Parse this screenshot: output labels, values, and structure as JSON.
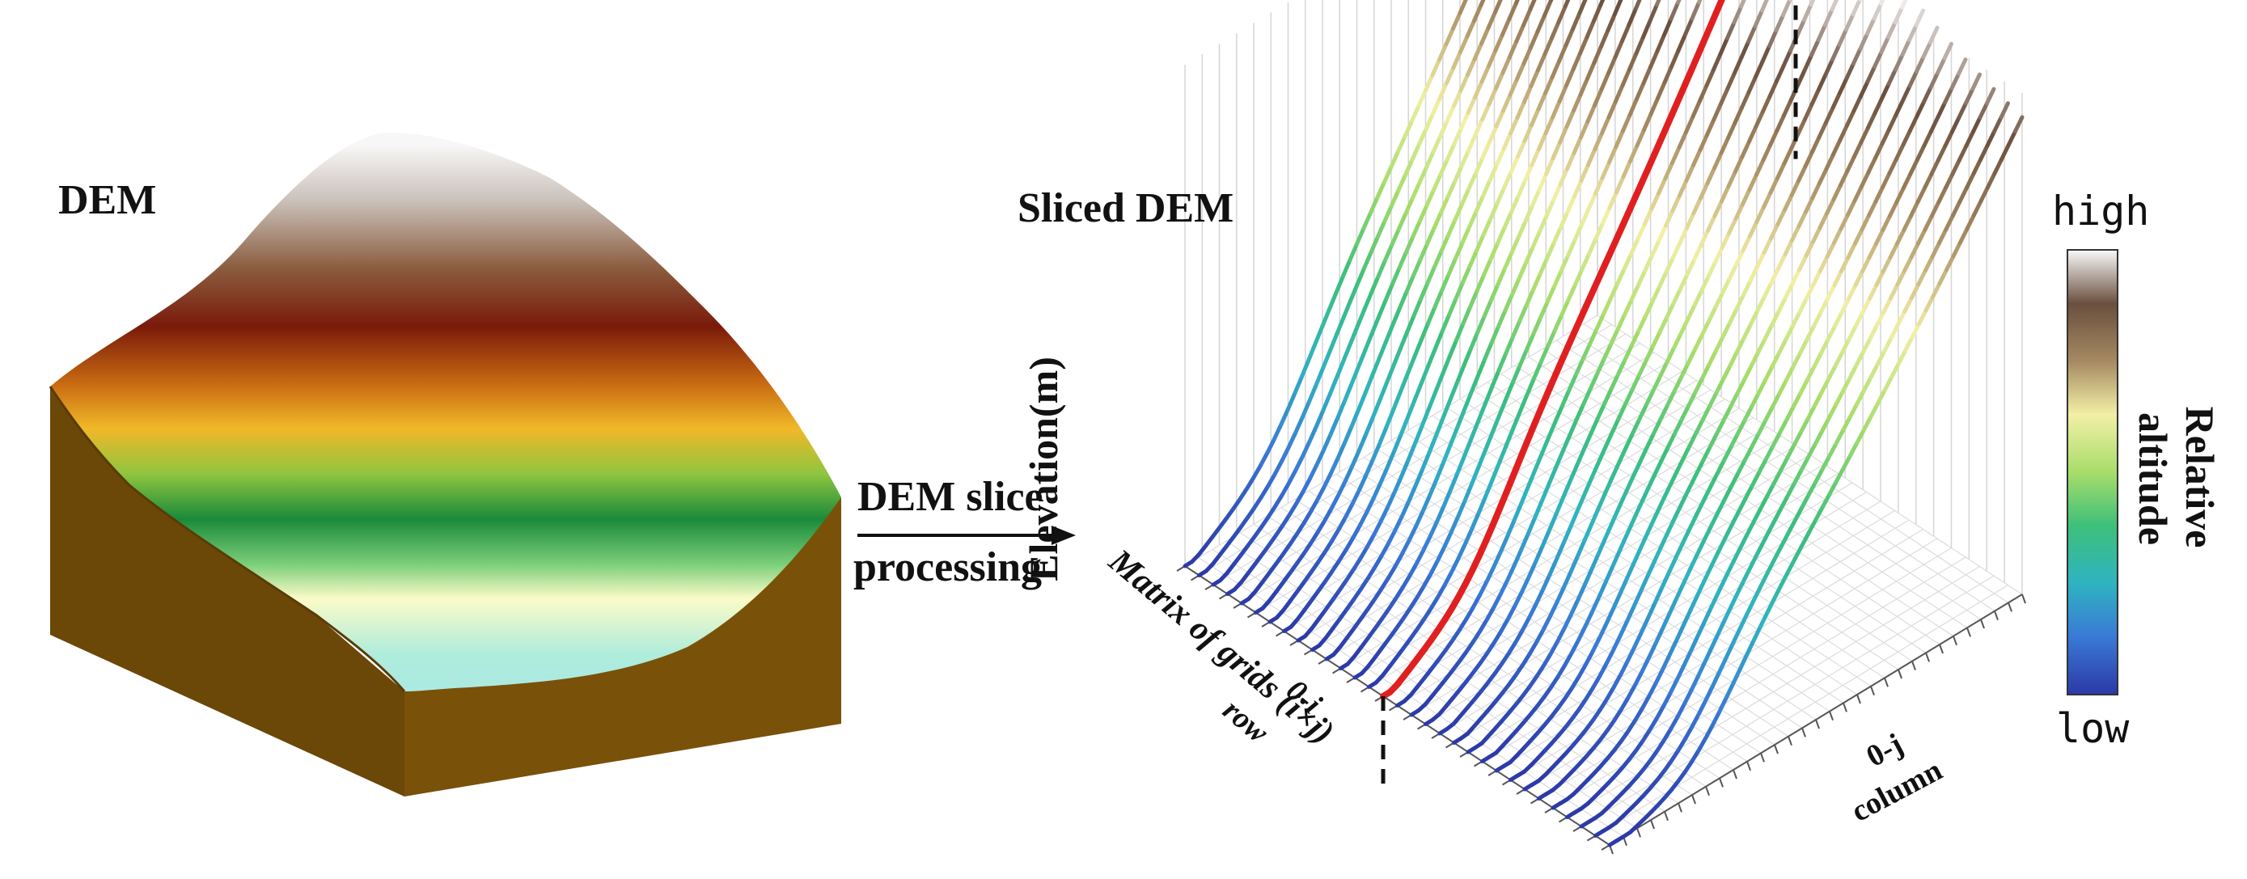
{
  "left_panel": {
    "title": "DEM"
  },
  "arrow": {
    "line1": "DEM slice",
    "line2": "processing"
  },
  "right_panel": {
    "title": "Sliced DEM",
    "z_axis_label": "Elevation(m)",
    "matrix_label": "Matrix of grids (i×j)",
    "row_label_top": "0-i",
    "row_label_bottom": "row",
    "column_label_top": "0-j",
    "column_label_bottom": "column"
  },
  "colorbar": {
    "high_label": "high",
    "low_label": "low",
    "title_line1": "Relative",
    "title_line2": "altitude",
    "stops": [
      "#2c3aa8",
      "#3a7ad6",
      "#2fb3c0",
      "#3dc07a",
      "#a8dd6a",
      "#f3efa6",
      "#a58a62",
      "#6a4f3e",
      "#f6f6f6"
    ]
  },
  "highlight_color": "#e02020"
}
